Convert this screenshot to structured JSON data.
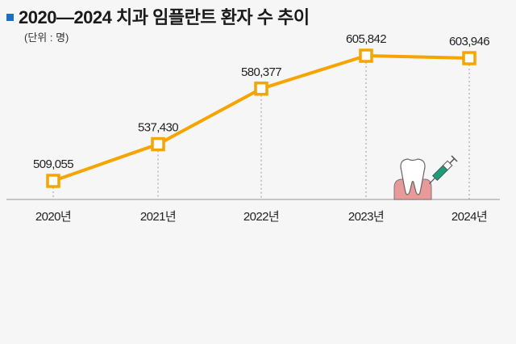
{
  "header": {
    "title": "2020—2024 치과 임플란트 환자 수 추이",
    "unit": "(단위 : 명)",
    "accent_color": "#1e6fc0"
  },
  "chart_data": {
    "type": "line",
    "title": "2020—2024 치과 임플란트 환자 수 추이",
    "subtitle": "(단위 : 명)",
    "xlabel": "",
    "ylabel": "",
    "categories": [
      "2020년",
      "2021년",
      "2022년",
      "2023년",
      "2024년"
    ],
    "series": [
      {
        "name": "치과 임플란트 환자 수",
        "values": [
          509055,
          537430,
          580377,
          605842,
          603946
        ],
        "color": "#f5a400"
      }
    ],
    "data_labels": [
      "509,055",
      "537,430",
      "580,377",
      "605,842",
      "603,946"
    ],
    "grid": false,
    "legend": "none",
    "marker": "hollow-square"
  },
  "decoration": {
    "icon": "tooth-implant-syringe-icon"
  }
}
